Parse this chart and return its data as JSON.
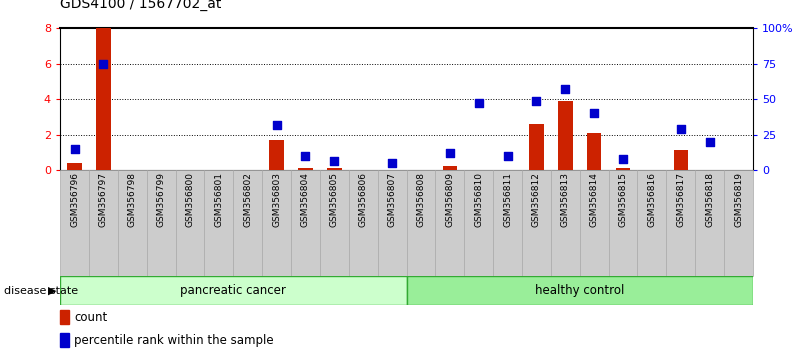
{
  "title": "GDS4100 / 1567702_at",
  "samples": [
    "GSM356796",
    "GSM356797",
    "GSM356798",
    "GSM356799",
    "GSM356800",
    "GSM356801",
    "GSM356802",
    "GSM356803",
    "GSM356804",
    "GSM356805",
    "GSM356806",
    "GSM356807",
    "GSM356808",
    "GSM356809",
    "GSM356810",
    "GSM356811",
    "GSM356812",
    "GSM356813",
    "GSM356814",
    "GSM356815",
    "GSM356816",
    "GSM356817",
    "GSM356818",
    "GSM356819"
  ],
  "count_values": [
    0.4,
    8.0,
    0.0,
    0.0,
    0.0,
    0.0,
    0.0,
    1.7,
    0.1,
    0.1,
    0.0,
    0.0,
    0.0,
    0.2,
    0.0,
    0.0,
    2.6,
    3.9,
    2.1,
    0.1,
    0.0,
    1.1,
    0.0,
    0.0
  ],
  "percentile_values": [
    15,
    75,
    0,
    0,
    0,
    0,
    0,
    32,
    10,
    6,
    0,
    5,
    0,
    12,
    47,
    10,
    49,
    57,
    40,
    8,
    0,
    29,
    20,
    0
  ],
  "group_labels": [
    "pancreatic cancer",
    "healthy control"
  ],
  "group_colors": [
    "#ccffcc",
    "#99ee99"
  ],
  "group_edge_color": "#33aa33",
  "disease_state_label": "disease state",
  "left_ylim": [
    0,
    8
  ],
  "left_yticks": [
    0,
    2,
    4,
    6,
    8
  ],
  "right_ylim": [
    0,
    100
  ],
  "right_yticks": [
    0,
    25,
    50,
    75,
    100
  ],
  "right_yticklabels": [
    "0",
    "25",
    "50",
    "75",
    "100%"
  ],
  "bar_color": "#cc2200",
  "dot_color": "#0000cc",
  "bg_color": "#ffffff",
  "plot_bg_color": "#ffffff",
  "legend_count_label": "count",
  "legend_percentile_label": "percentile rank within the sample",
  "tick_label_bg": "#cccccc",
  "bar_width": 0.5
}
